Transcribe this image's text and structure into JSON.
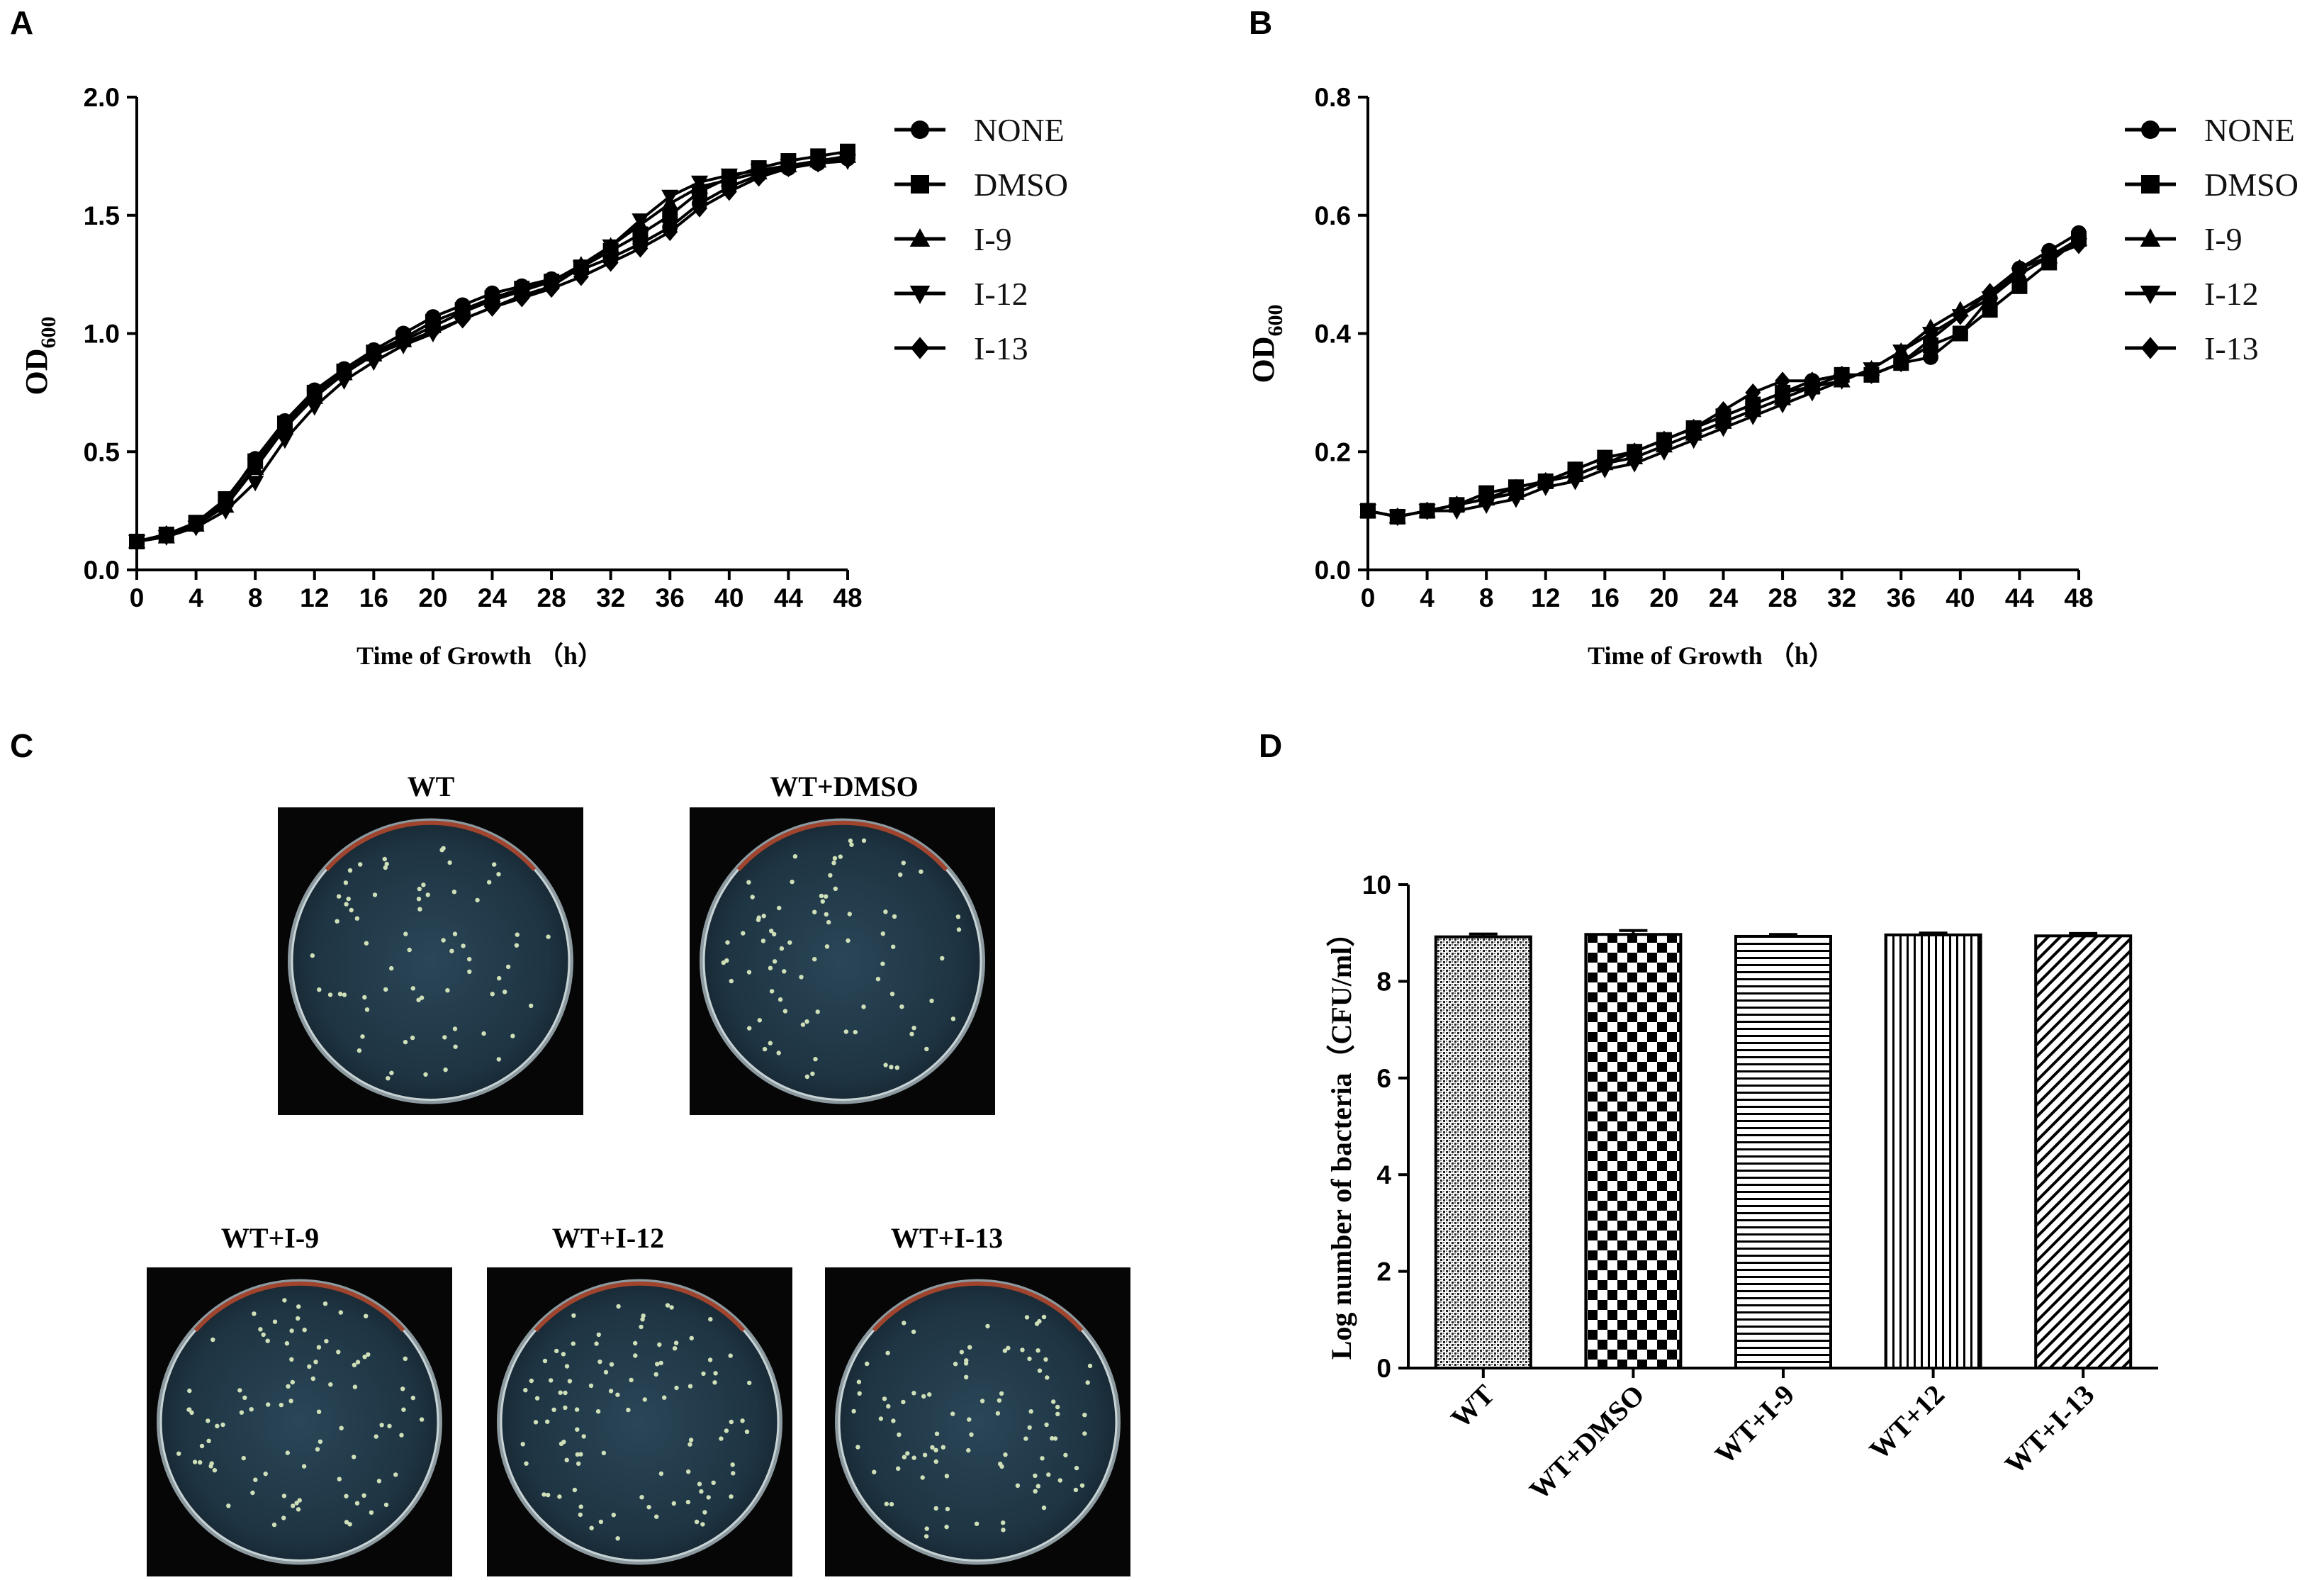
{
  "panels": {
    "A": {
      "letter": "A"
    },
    "B": {
      "letter": "B"
    },
    "C": {
      "letter": "C"
    },
    "D": {
      "letter": "D"
    }
  },
  "legend": {
    "items": [
      {
        "name": "NONE",
        "marker": "circle"
      },
      {
        "name": "DMSO",
        "marker": "square"
      },
      {
        "name": "I-9",
        "marker": "triangle-up"
      },
      {
        "name": "I-12",
        "marker": "triangle-down"
      },
      {
        "name": "I-13",
        "marker": "diamond"
      }
    ]
  },
  "plates": {
    "top": [
      {
        "label": "WT"
      },
      {
        "label": "WT+DMSO"
      }
    ],
    "bottom": [
      {
        "label": "WT+I-9"
      },
      {
        "label": "WT+I-12"
      },
      {
        "label": "WT+I-13"
      }
    ]
  },
  "chart_data": [
    {
      "panel": "A",
      "type": "line",
      "title": "",
      "xlabel": "Time of Growth （h）",
      "ylabel_main": "OD",
      "ylabel_sub": "600",
      "xlim": [
        0,
        48
      ],
      "ylim": [
        0,
        2.0
      ],
      "xticks": [
        "0",
        "4",
        "8",
        "12",
        "16",
        "20",
        "24",
        "28",
        "32",
        "36",
        "40",
        "44",
        "48"
      ],
      "yticks": [
        "0.0",
        "0.5",
        "1.0",
        "1.5",
        "2.0"
      ],
      "legend_position": "right",
      "x": [
        0,
        2,
        4,
        6,
        8,
        10,
        12,
        14,
        16,
        18,
        20,
        22,
        24,
        26,
        28,
        30,
        32,
        34,
        36,
        38,
        40,
        42,
        44,
        46,
        48
      ],
      "series": [
        {
          "name": "NONE",
          "marker": "circle",
          "values": [
            0.12,
            0.15,
            0.19,
            0.29,
            0.47,
            0.63,
            0.76,
            0.85,
            0.93,
            1.0,
            1.07,
            1.12,
            1.17,
            1.2,
            1.23,
            1.27,
            1.32,
            1.38,
            1.45,
            1.55,
            1.62,
            1.67,
            1.7,
            1.72,
            1.74
          ]
        },
        {
          "name": "DMSO",
          "marker": "square",
          "values": [
            0.12,
            0.15,
            0.2,
            0.3,
            0.46,
            0.62,
            0.75,
            0.84,
            0.92,
            0.98,
            1.05,
            1.1,
            1.15,
            1.19,
            1.22,
            1.28,
            1.35,
            1.42,
            1.5,
            1.6,
            1.66,
            1.7,
            1.73,
            1.75,
            1.77
          ]
        },
        {
          "name": "I-9",
          "marker": "triangle-up",
          "values": [
            0.12,
            0.14,
            0.19,
            0.27,
            0.43,
            0.6,
            0.73,
            0.83,
            0.91,
            0.97,
            1.03,
            1.09,
            1.14,
            1.18,
            1.22,
            1.29,
            1.37,
            1.46,
            1.55,
            1.62,
            1.65,
            1.68,
            1.71,
            1.73,
            1.75
          ]
        },
        {
          "name": "I-12",
          "marker": "triangle-down",
          "values": [
            0.12,
            0.14,
            0.18,
            0.25,
            0.37,
            0.55,
            0.69,
            0.8,
            0.88,
            0.95,
            1.0,
            1.06,
            1.11,
            1.16,
            1.2,
            1.28,
            1.37,
            1.48,
            1.58,
            1.64,
            1.67,
            1.69,
            1.71,
            1.72,
            1.73
          ]
        },
        {
          "name": "I-13",
          "marker": "diamond",
          "values": [
            0.12,
            0.15,
            0.19,
            0.28,
            0.44,
            0.61,
            0.74,
            0.84,
            0.91,
            0.96,
            1.01,
            1.06,
            1.11,
            1.15,
            1.19,
            1.24,
            1.3,
            1.36,
            1.43,
            1.53,
            1.6,
            1.66,
            1.7,
            1.72,
            1.74
          ]
        }
      ]
    },
    {
      "panel": "B",
      "type": "line",
      "title": "",
      "xlabel": "Time of Growth （h）",
      "ylabel_main": "OD",
      "ylabel_sub": "600",
      "xlim": [
        0,
        48
      ],
      "ylim": [
        0,
        0.8
      ],
      "xticks": [
        "0",
        "4",
        "8",
        "12",
        "16",
        "20",
        "24",
        "28",
        "32",
        "36",
        "40",
        "44",
        "48"
      ],
      "yticks": [
        "0.0",
        "0.2",
        "0.4",
        "0.6",
        "0.8"
      ],
      "legend_position": "right",
      "x": [
        0,
        2,
        4,
        6,
        8,
        10,
        12,
        14,
        16,
        18,
        20,
        22,
        24,
        26,
        28,
        30,
        32,
        34,
        36,
        38,
        40,
        42,
        44,
        46,
        48
      ],
      "series": [
        {
          "name": "NONE",
          "marker": "circle",
          "values": [
            0.1,
            0.09,
            0.1,
            0.11,
            0.12,
            0.14,
            0.15,
            0.17,
            0.19,
            0.2,
            0.22,
            0.24,
            0.26,
            0.28,
            0.3,
            0.32,
            0.33,
            0.33,
            0.35,
            0.36,
            0.4,
            0.46,
            0.51,
            0.54,
            0.57
          ]
        },
        {
          "name": "DMSO",
          "marker": "square",
          "values": [
            0.1,
            0.09,
            0.1,
            0.11,
            0.13,
            0.14,
            0.15,
            0.17,
            0.19,
            0.2,
            0.22,
            0.24,
            0.26,
            0.28,
            0.3,
            0.31,
            0.33,
            0.33,
            0.35,
            0.38,
            0.4,
            0.44,
            0.48,
            0.52,
            0.56
          ]
        },
        {
          "name": "I-9",
          "marker": "triangle-up",
          "values": [
            0.1,
            0.09,
            0.1,
            0.11,
            0.12,
            0.13,
            0.15,
            0.16,
            0.18,
            0.19,
            0.21,
            0.23,
            0.25,
            0.27,
            0.29,
            0.31,
            0.32,
            0.34,
            0.37,
            0.41,
            0.44,
            0.47,
            0.5,
            0.53,
            0.56
          ]
        },
        {
          "name": "I-12",
          "marker": "triangle-down",
          "values": [
            0.1,
            0.09,
            0.1,
            0.1,
            0.11,
            0.12,
            0.14,
            0.15,
            0.17,
            0.18,
            0.2,
            0.22,
            0.24,
            0.26,
            0.28,
            0.3,
            0.32,
            0.34,
            0.37,
            0.4,
            0.43,
            0.46,
            0.5,
            0.53,
            0.55
          ]
        },
        {
          "name": "I-13",
          "marker": "diamond",
          "values": [
            0.1,
            0.09,
            0.1,
            0.11,
            0.12,
            0.13,
            0.15,
            0.16,
            0.18,
            0.2,
            0.22,
            0.24,
            0.27,
            0.3,
            0.32,
            0.32,
            0.33,
            0.33,
            0.35,
            0.39,
            0.43,
            0.47,
            0.51,
            0.53,
            0.55
          ]
        }
      ]
    },
    {
      "panel": "D",
      "type": "bar",
      "title": "",
      "xlabel": "",
      "ylabel": "Log number of bacteria（CFU/ml）",
      "ylim": [
        0,
        10
      ],
      "yticks": [
        "0",
        "2",
        "4",
        "6",
        "8",
        "10"
      ],
      "categories": [
        "WT",
        "WT+DMSO",
        "WT+I-9",
        "WT+12",
        "WT+I-13"
      ],
      "values": [
        8.92,
        8.97,
        8.93,
        8.96,
        8.94
      ],
      "errors": [
        0.06,
        0.08,
        0.04,
        0.04,
        0.05
      ],
      "patterns": [
        "dots",
        "checker",
        "horizontal",
        "vertical",
        "diagonal"
      ]
    }
  ]
}
